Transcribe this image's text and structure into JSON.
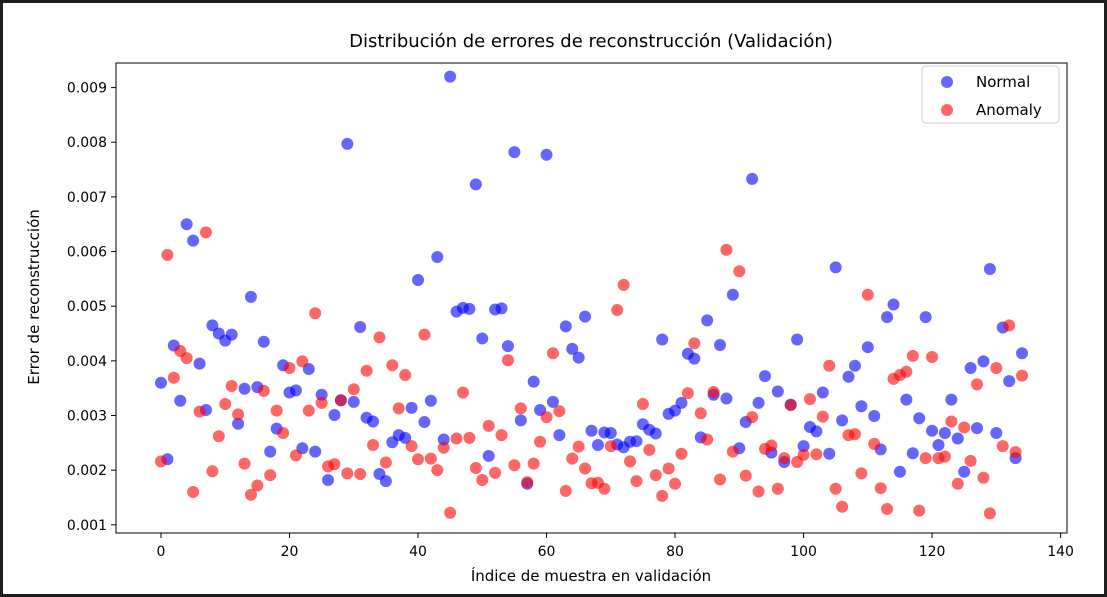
{
  "chart_data": {
    "type": "scatter",
    "title": "Distribución de errores de reconstrucción (Validación)",
    "xlabel": "Índice de muestra en validación",
    "ylabel": "Error de reconstrucción",
    "xlim": [
      -7,
      141
    ],
    "ylim": [
      0.00085,
      0.00945
    ],
    "xticks": [
      0,
      20,
      40,
      60,
      80,
      100,
      120,
      140
    ],
    "yticks": [
      0.001,
      0.002,
      0.003,
      0.004,
      0.005,
      0.006,
      0.007,
      0.008,
      0.009
    ],
    "ytick_labels": [
      "0.001",
      "0.002",
      "0.003",
      "0.004",
      "0.005",
      "0.006",
      "0.007",
      "0.008",
      "0.009"
    ],
    "grid": false,
    "legend_position": "top-right",
    "series": [
      {
        "name": "Normal",
        "color": "#0000ff",
        "alpha": 0.6,
        "x": [
          0,
          1,
          2,
          3,
          4,
          5,
          6,
          7,
          8,
          9,
          10,
          11,
          12,
          13,
          14,
          15,
          16,
          17,
          18,
          19,
          20,
          21,
          22,
          23,
          24,
          25,
          26,
          27,
          28,
          29,
          30,
          31,
          32,
          33,
          34,
          35,
          36,
          37,
          38,
          39,
          40,
          41,
          42,
          43,
          44,
          45,
          46,
          47,
          48,
          49,
          50,
          51,
          52,
          53,
          54,
          55,
          56,
          57,
          58,
          59,
          60,
          61,
          62,
          63,
          64,
          65,
          66,
          67,
          68,
          69,
          70,
          71,
          72,
          73,
          74,
          75,
          76,
          77,
          78,
          79,
          80,
          81,
          82,
          83,
          84,
          85,
          86,
          87,
          88,
          89,
          90,
          91,
          92,
          93,
          94,
          95,
          96,
          97,
          98,
          99,
          100,
          101,
          102,
          103,
          104,
          105,
          106,
          107,
          108,
          109,
          110,
          111,
          112,
          113,
          114,
          115,
          116,
          117,
          118,
          119,
          120,
          121,
          122,
          123,
          124,
          125,
          126,
          127,
          128,
          129,
          130,
          131,
          132,
          133,
          134
        ],
        "y": [
          0.0036,
          0.0022,
          0.00428,
          0.00327,
          0.0065,
          0.0062,
          0.00395,
          0.0031,
          0.00465,
          0.0045,
          0.00437,
          0.00448,
          0.00285,
          0.00349,
          0.00517,
          0.00352,
          0.00435,
          0.00234,
          0.00276,
          0.00392,
          0.00342,
          0.00346,
          0.0024,
          0.00385,
          0.00234,
          0.00338,
          0.00182,
          0.00301,
          0.00328,
          0.00797,
          0.00325,
          0.00462,
          0.00296,
          0.00289,
          0.00193,
          0.0018,
          0.00251,
          0.00264,
          0.00259,
          0.00314,
          0.00548,
          0.00288,
          0.00327,
          0.0059,
          0.00256,
          0.0092,
          0.0049,
          0.00497,
          0.00495,
          0.00723,
          0.00441,
          0.00226,
          0.00494,
          0.00496,
          0.00427,
          0.00782,
          0.00291,
          0.00175,
          0.00362,
          0.0031,
          0.00777,
          0.00325,
          0.00264,
          0.00463,
          0.00422,
          0.00406,
          0.00481,
          0.00272,
          0.00246,
          0.00269,
          0.00268,
          0.00247,
          0.00242,
          0.00252,
          0.00253,
          0.00284,
          0.00274,
          0.00267,
          0.00439,
          0.00303,
          0.00309,
          0.00323,
          0.00413,
          0.00404,
          0.0026,
          0.00474,
          0.00338,
          0.00429,
          0.00331,
          0.00521,
          0.0024,
          0.00288,
          0.00733,
          0.00323,
          0.00372,
          0.00232,
          0.00344,
          0.00215,
          0.0032,
          0.00439,
          0.00244,
          0.00279,
          0.00271,
          0.00342,
          0.0023,
          0.00571,
          0.00291,
          0.00371,
          0.00391,
          0.00317,
          0.00425,
          0.00299,
          0.00238,
          0.0048,
          0.00503,
          0.00197,
          0.00329,
          0.00231,
          0.00295,
          0.0048,
          0.00272,
          0.00246,
          0.00268,
          0.00329,
          0.00258,
          0.00197,
          0.00387,
          0.00277,
          0.00399,
          0.00568,
          0.00268,
          0.00461,
          0.00363,
          0.00222,
          0.00414
        ]
      },
      {
        "name": "Anomaly",
        "color": "#ff0000",
        "alpha": 0.6,
        "x": [
          0,
          1,
          2,
          3,
          4,
          5,
          6,
          7,
          8,
          9,
          10,
          11,
          12,
          13,
          14,
          15,
          16,
          17,
          18,
          19,
          20,
          21,
          22,
          23,
          24,
          25,
          26,
          27,
          28,
          29,
          30,
          31,
          32,
          33,
          34,
          35,
          36,
          37,
          38,
          39,
          40,
          41,
          42,
          43,
          44,
          45,
          46,
          47,
          48,
          49,
          50,
          51,
          52,
          53,
          54,
          55,
          56,
          57,
          58,
          59,
          60,
          61,
          62,
          63,
          64,
          65,
          66,
          67,
          68,
          69,
          70,
          71,
          72,
          73,
          74,
          75,
          76,
          77,
          78,
          79,
          80,
          81,
          82,
          83,
          84,
          85,
          86,
          87,
          88,
          89,
          90,
          91,
          92,
          93,
          94,
          95,
          96,
          97,
          98,
          99,
          100,
          101,
          102,
          103,
          104,
          105,
          106,
          107,
          108,
          109,
          110,
          111,
          112,
          113,
          114,
          115,
          116,
          117,
          118,
          119,
          120,
          121,
          122,
          123,
          124,
          125,
          126,
          127,
          128,
          129,
          130,
          131,
          132,
          133,
          134
        ],
        "y": [
          0.00216,
          0.00594,
          0.00369,
          0.00418,
          0.00405,
          0.0016,
          0.00307,
          0.00635,
          0.00198,
          0.00262,
          0.00321,
          0.00354,
          0.00302,
          0.00212,
          0.00155,
          0.00172,
          0.00345,
          0.00191,
          0.00309,
          0.00268,
          0.00387,
          0.00227,
          0.00399,
          0.00309,
          0.00487,
          0.00323,
          0.00207,
          0.00211,
          0.00328,
          0.00194,
          0.00348,
          0.00193,
          0.00382,
          0.00246,
          0.00443,
          0.00214,
          0.00392,
          0.00313,
          0.00374,
          0.00244,
          0.0022,
          0.00448,
          0.00221,
          0.002,
          0.00241,
          0.00122,
          0.00258,
          0.00342,
          0.00259,
          0.00204,
          0.00182,
          0.00281,
          0.00195,
          0.00264,
          0.00401,
          0.00209,
          0.00313,
          0.00178,
          0.00212,
          0.00252,
          0.00297,
          0.00414,
          0.00308,
          0.00162,
          0.00221,
          0.00243,
          0.00203,
          0.00176,
          0.00177,
          0.00166,
          0.00244,
          0.00493,
          0.00539,
          0.00216,
          0.0018,
          0.00321,
          0.00237,
          0.00191,
          0.00153,
          0.00203,
          0.00175,
          0.0023,
          0.00341,
          0.00432,
          0.00304,
          0.00256,
          0.00343,
          0.00183,
          0.00603,
          0.00234,
          0.00564,
          0.0019,
          0.00297,
          0.00161,
          0.00239,
          0.00245,
          0.00166,
          0.00222,
          0.00319,
          0.00215,
          0.00228,
          0.0033,
          0.00229,
          0.00298,
          0.00391,
          0.00166,
          0.00133,
          0.00264,
          0.00266,
          0.00194,
          0.00521,
          0.00248,
          0.00167,
          0.00129,
          0.00367,
          0.00374,
          0.0038,
          0.00409,
          0.00126,
          0.00222,
          0.00407,
          0.00222,
          0.00225,
          0.00289,
          0.00175,
          0.00278,
          0.00217,
          0.00357,
          0.00186,
          0.00121,
          0.00387,
          0.00244,
          0.00465,
          0.00233,
          0.00373
        ]
      }
    ]
  }
}
